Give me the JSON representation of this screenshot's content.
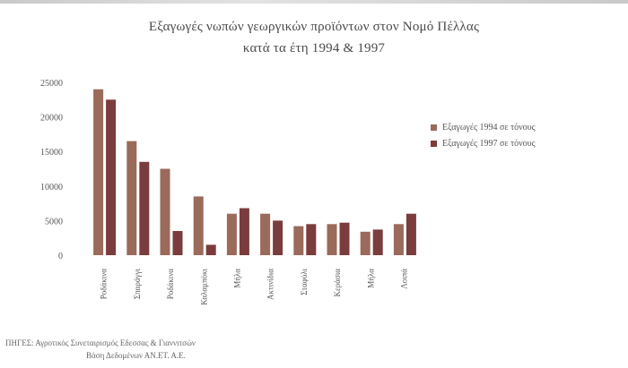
{
  "chart_data": {
    "type": "bar",
    "title": "Εξαγωγές νωπών γεωργικών προϊόντων στον Νομό Πέλλας",
    "subtitle": "κατά τα έτη 1994 & 1997",
    "categories": [
      "Ροδάκινα",
      "Σπαράγγι",
      "Ροδάκινα",
      "Καλαμπόκι",
      "Μήλα",
      "Ακτινίδια",
      "Σταφύλι",
      "Κεράσια",
      "Μήλα",
      "Λοιπά"
    ],
    "series": [
      {
        "name": "Εξαγωγές 1994 σε τόνους",
        "color": "#9a6a5a",
        "values": [
          24000,
          16500,
          12500,
          8500,
          6000,
          6000,
          4200,
          4500,
          3400,
          4500
        ]
      },
      {
        "name": "Εξαγωγές 1997 σε τόνους",
        "color": "#7a3c3c",
        "values": [
          22500,
          13500,
          3500,
          1500,
          6800,
          5000,
          4500,
          4700,
          3700,
          6000
        ]
      }
    ],
    "yticks": [
      "25000",
      "20000",
      "15000",
      "10000",
      "5000",
      "0"
    ],
    "ylim": [
      0,
      25000
    ],
    "grid": false,
    "legend_position": "right"
  },
  "source": {
    "line1": "ΠΗΓΕΣ: Αγροτικός Συνεταιρισμός Εδεσσας & Γιαννιτσών",
    "line2": "Βάση Δεδομένων ΑΝ.ΕΤ. Α.Ε."
  }
}
